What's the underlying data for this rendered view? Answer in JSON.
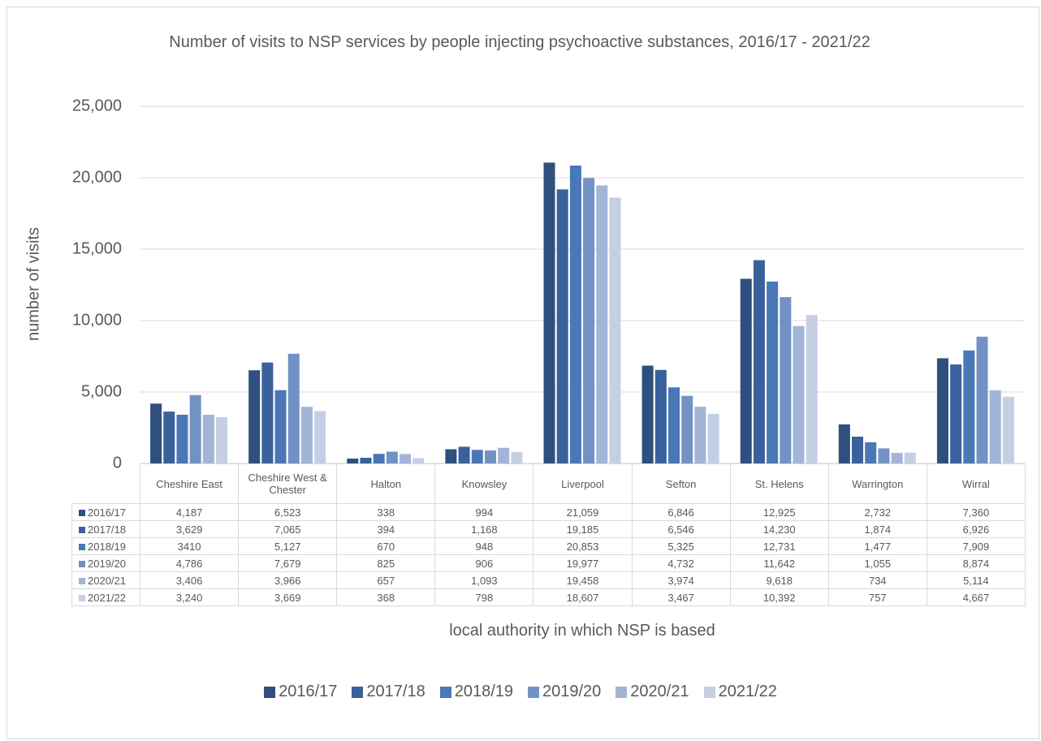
{
  "chart_data": {
    "type": "bar",
    "title": "Number of visits to NSP services by people injecting psychoactive substances, 2016/17 - 2021/22",
    "y_label": "number of visits",
    "x_label": "local authority in which NSP is based",
    "categories": [
      "Cheshire East",
      "Cheshire West & Chester",
      "Halton",
      "Knowsley",
      "Liverpool",
      "Sefton",
      "St. Helens",
      "Warrington",
      "Wirral"
    ],
    "series": [
      {
        "name": "2016/17",
        "color": "#2f4f7e",
        "values": [
          4187,
          6523,
          338,
          994,
          21059,
          6846,
          12925,
          2732,
          7360
        ],
        "value_labels": [
          "4,187",
          "6,523",
          "338",
          "994",
          "21,059",
          "6,846",
          "12,925",
          "2,732",
          "7,360"
        ]
      },
      {
        "name": "2017/18",
        "color": "#3a619b",
        "values": [
          3629,
          7065,
          394,
          1168,
          19185,
          6546,
          14230,
          1874,
          6926
        ],
        "value_labels": [
          "3,629",
          "7,065",
          "394",
          "1,168",
          "19,185",
          "6,546",
          "14,230",
          "1,874",
          "6,926"
        ]
      },
      {
        "name": "2018/19",
        "color": "#4a77b6",
        "values": [
          3410,
          5127,
          670,
          948,
          20853,
          5325,
          12731,
          1477,
          7909
        ],
        "value_labels": [
          "3410",
          "5,127",
          "670",
          "948",
          "20,853",
          "5,325",
          "12,731",
          "1,477",
          "7,909"
        ]
      },
      {
        "name": "2019/20",
        "color": "#7292c6",
        "values": [
          4786,
          7679,
          825,
          906,
          19977,
          4732,
          11642,
          1055,
          8874
        ],
        "value_labels": [
          "4,786",
          "7,679",
          "825",
          "906",
          "19,977",
          "4,732",
          "11,642",
          "1,055",
          "8,874"
        ]
      },
      {
        "name": "2020/21",
        "color": "#a3b5d7",
        "values": [
          3406,
          3966,
          657,
          1093,
          19458,
          3974,
          9618,
          734,
          5114
        ],
        "value_labels": [
          "3,406",
          "3,966",
          "657",
          "1,093",
          "19,458",
          "3,974",
          "9,618",
          "734",
          "5,114"
        ]
      },
      {
        "name": "2021/22",
        "color": "#c5cfe4",
        "values": [
          3240,
          3669,
          368,
          798,
          18607,
          3467,
          10392,
          757,
          4667
        ],
        "value_labels": [
          "3,240",
          "3,669",
          "368",
          "798",
          "18,607",
          "3,467",
          "10,392",
          "757",
          "4,667"
        ]
      }
    ],
    "ylim": [
      0,
      25000
    ],
    "yticks": [
      0,
      {
        "value": 5000,
        "label": "5,000"
      },
      {
        "value": 10000,
        "label": "10,000"
      },
      {
        "value": 15000,
        "label": "15,000"
      },
      {
        "value": 20000,
        "label": "20,000"
      },
      {
        "value": 25000,
        "label": "25,000"
      }
    ],
    "grid": true,
    "legend": "bottom"
  }
}
